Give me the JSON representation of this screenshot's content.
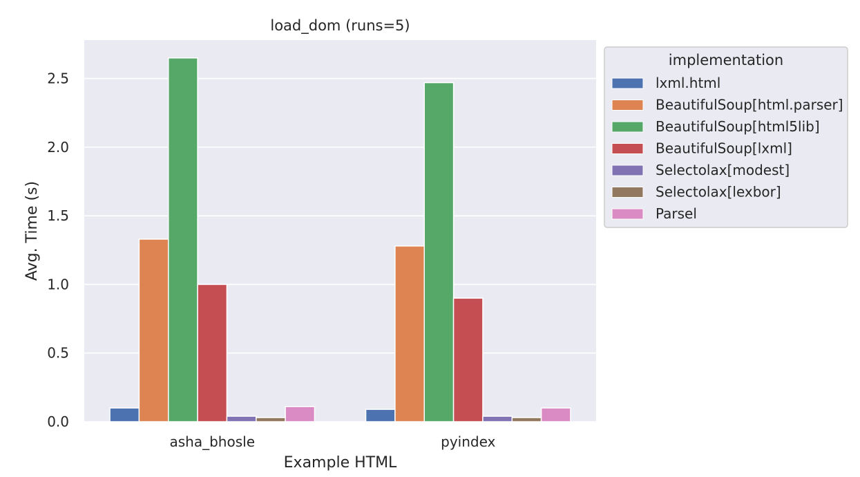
{
  "chart_data": {
    "type": "bar",
    "title": "load_dom (runs=5)",
    "xlabel": "Example HTML",
    "ylabel": "Avg. Time (s)",
    "categories": [
      "asha_bhosle",
      "pyindex"
    ],
    "ylim": [
      0,
      2.78
    ],
    "yticks": [
      0.0,
      0.5,
      1.0,
      1.5,
      2.0,
      2.5
    ],
    "ytick_labels": [
      "0.0",
      "0.5",
      "1.0",
      "1.5",
      "2.0",
      "2.5"
    ],
    "grid": true,
    "legend": {
      "title": "implementation",
      "placement": "outside-upper-right"
    },
    "series": [
      {
        "name": "lxml.html",
        "color": "#4c72b0",
        "values": [
          0.1,
          0.09
        ]
      },
      {
        "name": "BeautifulSoup[html.parser]",
        "color": "#dd8452",
        "values": [
          1.33,
          1.28
        ]
      },
      {
        "name": "BeautifulSoup[html5lib]",
        "color": "#55a868",
        "values": [
          2.65,
          2.47
        ]
      },
      {
        "name": "BeautifulSoup[lxml]",
        "color": "#c44e52",
        "values": [
          1.0,
          0.9
        ]
      },
      {
        "name": "Selectolax[modest]",
        "color": "#8172b3",
        "values": [
          0.04,
          0.04
        ]
      },
      {
        "name": "Selectolax[lexbor]",
        "color": "#937860",
        "values": [
          0.03,
          0.03
        ]
      },
      {
        "name": "Parsel",
        "color": "#da8bc3",
        "values": [
          0.11,
          0.1
        ]
      }
    ]
  }
}
